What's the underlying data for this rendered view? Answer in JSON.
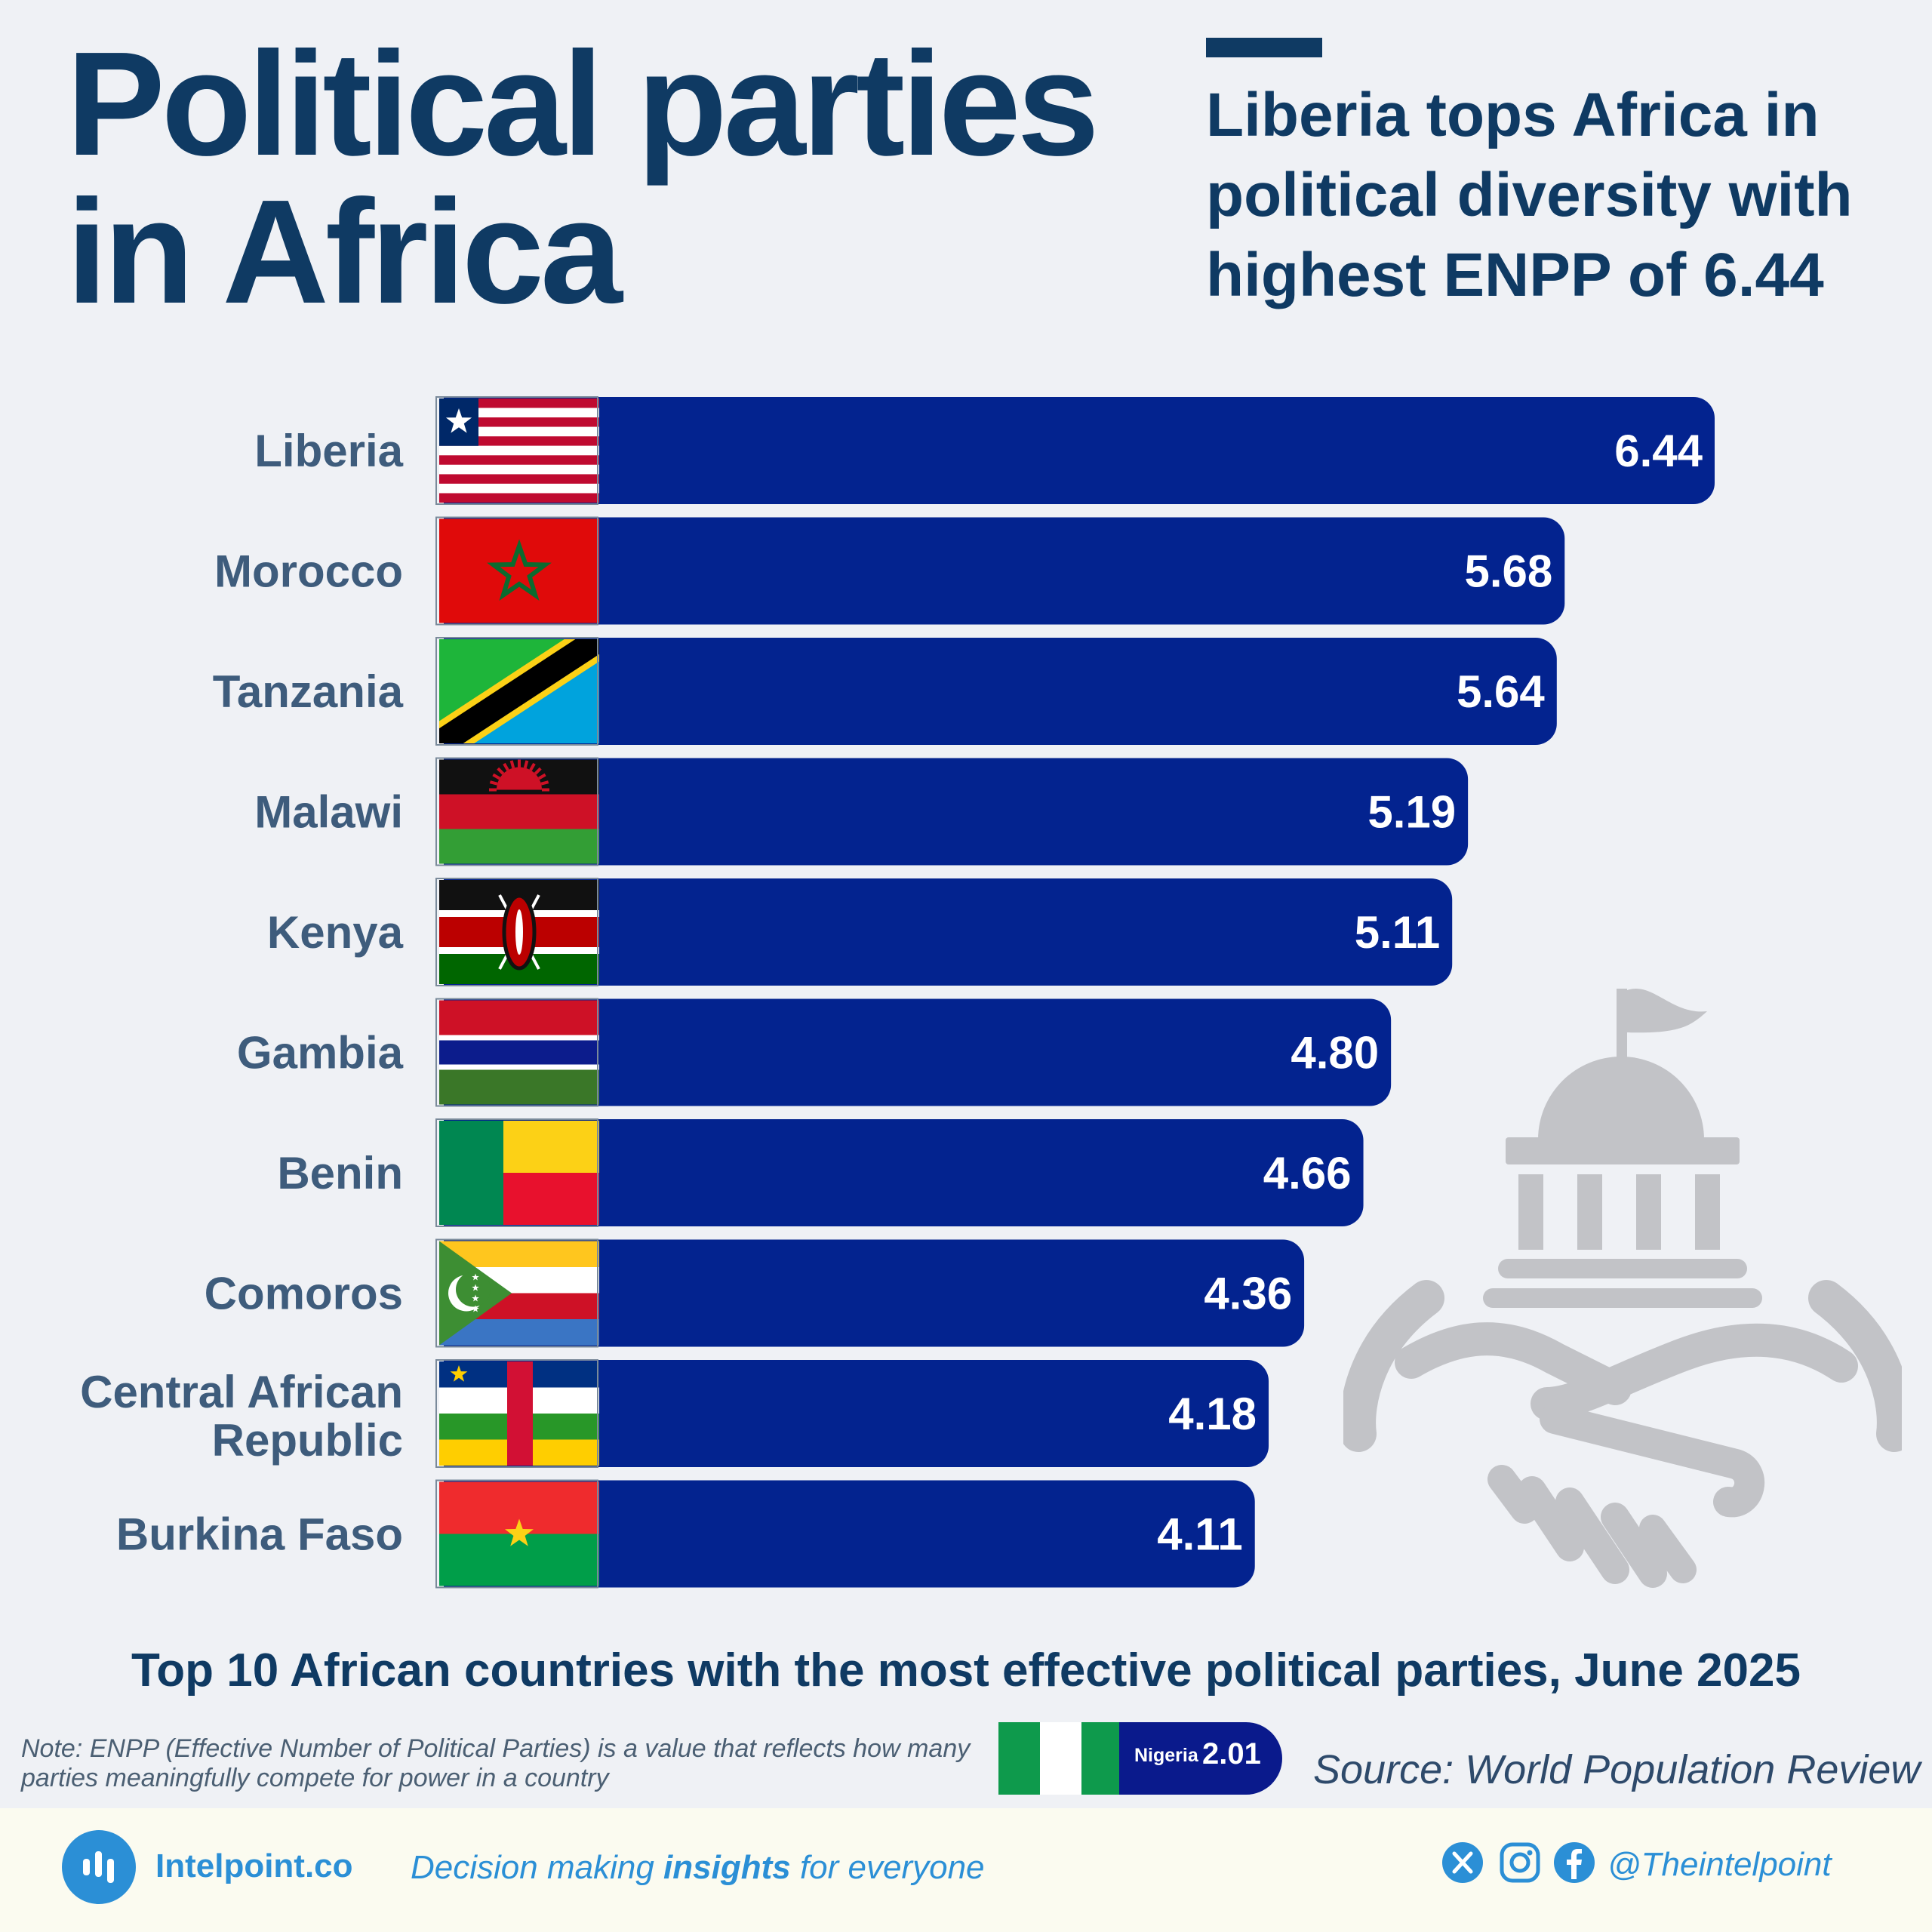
{
  "title": {
    "line1": "Political parties",
    "line2": "in Africa"
  },
  "subtitle": "Liberia tops Africa in political diversity with highest ENPP of 6.44",
  "chart_data": {
    "type": "bar",
    "orientation": "horizontal",
    "categories": [
      "Liberia",
      "Morocco",
      "Tanzania",
      "Malawi",
      "Kenya",
      "Gambia",
      "Benin",
      "Comoros",
      "Central African Republic",
      "Burkina Faso"
    ],
    "values": [
      6.44,
      5.68,
      5.64,
      5.19,
      5.11,
      4.8,
      4.66,
      4.36,
      4.18,
      4.11
    ],
    "value_labels": [
      "6.44",
      "5.68",
      "5.64",
      "5.19",
      "5.11",
      "4.80",
      "4.66",
      "4.36",
      "4.18",
      "4.11"
    ],
    "bar_color": "#03238f",
    "caption": "Top 10 African countries with the most effective political parties, June 2025"
  },
  "note": "Note: ENPP (Effective Number of Political Parties) is a value that reflects how many parties meaningfully compete for power in a country",
  "comparison": {
    "country": "Nigeria",
    "value": "2.01"
  },
  "source": "Source: World Population Review",
  "footer": {
    "brand": "Intelpoint.co",
    "tagline_pre": "Decision making ",
    "tagline_bold": "insights",
    "tagline_post": " for everyone",
    "handle": "@Theintelpoint"
  },
  "colors": {
    "navy_text": "#0f3a63",
    "label_text": "#3e5c7c",
    "bar": "#03238f",
    "brand_blue": "#2b8fd6",
    "illustration_gray": "#c2c3c7"
  }
}
